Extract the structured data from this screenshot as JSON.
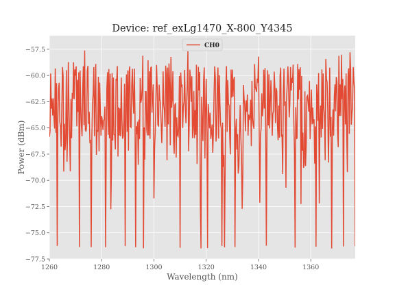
{
  "chart_data": {
    "type": "line",
    "title": "Device: ref_exLg1470_X-800_Y4345",
    "xlabel": "Wavelength (nm)",
    "ylabel": "Power (dBm)",
    "xlim": [
      1260,
      1377
    ],
    "ylim": [
      -77.5,
      -56.2
    ],
    "xticks": [
      1260,
      1280,
      1300,
      1320,
      1340,
      1360
    ],
    "yticks": [
      -77.5,
      -75.0,
      -72.5,
      -70.0,
      -67.5,
      -65.0,
      -62.5,
      -60.0,
      -57.5
    ],
    "xtick_labels": [
      "1260",
      "1280",
      "1300",
      "1320",
      "1340",
      "1360"
    ],
    "ytick_labels": [
      "−77.5",
      "−75.0",
      "−72.5",
      "−70.0",
      "−67.5",
      "−65.0",
      "−62.5",
      "−60.0",
      "−57.5"
    ],
    "grid": true,
    "legend_position": "top-center",
    "series": [
      {
        "name": "CH0",
        "color": "#e24a33",
        "x_start": 1260,
        "x_end": 1377,
        "x_step": 0.25,
        "baseline": -62.5,
        "upper_envelope": -58.0,
        "deep_dips": [
          1263,
          1271.5,
          1276,
          1281.5,
          1289,
          1293,
          1296,
          1310,
          1318,
          1320.5,
          1326,
          1327,
          1331,
          1343,
          1354,
          1362,
          1368,
          1372.5,
          1377
        ],
        "dip_floor": -76.5
      }
    ]
  }
}
